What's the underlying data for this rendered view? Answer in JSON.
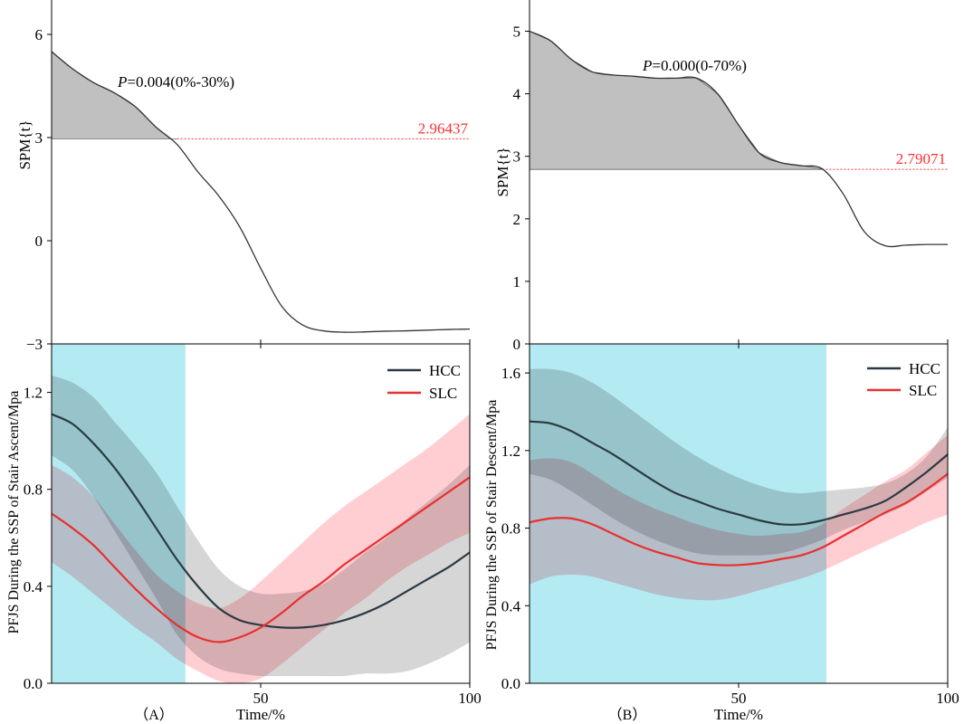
{
  "colors": {
    "spm_curve": "#333333",
    "spm_fill": "#c0c0c0",
    "threshold": "#ff3030",
    "hcc": "#2b3a42",
    "hcc_band": "#c8c8c8",
    "slc": "#e83030",
    "slc_band": "#ffb0b8",
    "highlight": "#b4eaf2",
    "axis": "#000000"
  },
  "shared": {
    "xlabel": "Time/%",
    "spm_ylabel": "SPM{t}",
    "legend_hcc": "HCC",
    "legend_slc": "SLC"
  },
  "chart_data": [
    {
      "id": "A-spm",
      "panel_label": "（A）",
      "type": "line",
      "x": [
        0,
        5,
        10,
        15,
        20,
        25,
        30,
        35,
        40,
        45,
        50,
        55,
        60,
        65,
        70,
        75,
        80,
        85,
        90,
        95,
        100
      ],
      "y": [
        5.5,
        5.0,
        4.6,
        4.3,
        3.9,
        3.3,
        2.8,
        2.0,
        1.3,
        0.4,
        -0.8,
        -1.9,
        -2.45,
        -2.62,
        -2.66,
        -2.65,
        -2.63,
        -2.62,
        -2.6,
        -2.58,
        -2.57
      ],
      "xlim": [
        0,
        100
      ],
      "ylim": [
        -3,
        7
      ],
      "xticks": [
        50,
        100
      ],
      "yticks": [
        -3,
        0,
        3,
        6
      ],
      "threshold": 2.96437,
      "threshold_label": "2.96437",
      "cluster": {
        "start": 0,
        "end": 30
      },
      "annotation_p": "P",
      "annotation_rest": "=0.004(0%-30%)",
      "ylabel": "SPM{t}"
    },
    {
      "id": "A-pfjs",
      "type": "line",
      "x": [
        0,
        5,
        10,
        15,
        20,
        25,
        30,
        35,
        40,
        45,
        50,
        55,
        60,
        65,
        70,
        75,
        80,
        85,
        90,
        95,
        100
      ],
      "xlim": [
        0,
        100
      ],
      "ylim": [
        0,
        1.4
      ],
      "xticks": [
        50,
        100
      ],
      "yticks": [
        0.0,
        0.4,
        0.8,
        1.2
      ],
      "ytick_labels": [
        "0.0",
        "0.4",
        "0.8",
        "1.2"
      ],
      "highlight": {
        "start": 0,
        "end": 32
      },
      "ylabel": "PFJS During the SSP of Stair Ascent/Mpa",
      "xlabel": "Time/%",
      "legend_position": "top-right",
      "series": [
        {
          "name": "HCC",
          "mean": [
            1.11,
            1.07,
            0.99,
            0.89,
            0.77,
            0.64,
            0.51,
            0.4,
            0.31,
            0.26,
            0.24,
            0.23,
            0.23,
            0.24,
            0.26,
            0.29,
            0.33,
            0.38,
            0.43,
            0.48,
            0.54
          ],
          "lower": [
            0.94,
            0.88,
            0.77,
            0.63,
            0.49,
            0.35,
            0.2,
            0.11,
            0.06,
            0.04,
            0.03,
            0.03,
            0.03,
            0.03,
            0.03,
            0.04,
            0.04,
            0.05,
            0.08,
            0.12,
            0.17
          ],
          "upper": [
            1.27,
            1.24,
            1.18,
            1.08,
            0.98,
            0.87,
            0.73,
            0.59,
            0.47,
            0.4,
            0.37,
            0.37,
            0.38,
            0.41,
            0.47,
            0.54,
            0.6,
            0.68,
            0.75,
            0.82,
            0.9
          ]
        },
        {
          "name": "SLC",
          "mean": [
            0.7,
            0.64,
            0.57,
            0.48,
            0.39,
            0.31,
            0.24,
            0.19,
            0.17,
            0.19,
            0.23,
            0.29,
            0.36,
            0.42,
            0.49,
            0.55,
            0.61,
            0.67,
            0.73,
            0.79,
            0.85
          ],
          "lower": [
            0.5,
            0.44,
            0.37,
            0.3,
            0.23,
            0.17,
            0.1,
            0.05,
            0.01,
            0.0,
            0.02,
            0.08,
            0.15,
            0.22,
            0.29,
            0.35,
            0.42,
            0.48,
            0.53,
            0.58,
            0.62
          ],
          "upper": [
            0.9,
            0.85,
            0.77,
            0.66,
            0.55,
            0.45,
            0.38,
            0.33,
            0.31,
            0.35,
            0.42,
            0.5,
            0.58,
            0.66,
            0.73,
            0.79,
            0.85,
            0.91,
            0.97,
            1.04,
            1.11
          ]
        }
      ]
    },
    {
      "id": "B-spm",
      "panel_label": "（B）",
      "type": "line",
      "x": [
        0,
        5,
        10,
        15,
        20,
        25,
        30,
        35,
        40,
        45,
        50,
        55,
        60,
        65,
        70,
        75,
        80,
        85,
        90,
        95,
        100
      ],
      "y": [
        5.0,
        4.85,
        4.55,
        4.35,
        4.3,
        4.28,
        4.25,
        4.25,
        4.25,
        4.0,
        3.5,
        3.05,
        2.9,
        2.85,
        2.8,
        2.4,
        1.8,
        1.57,
        1.58,
        1.59,
        1.59
      ],
      "xlim": [
        0,
        100
      ],
      "ylim": [
        0,
        5.5
      ],
      "xticks": [
        50,
        100
      ],
      "yticks": [
        0,
        1,
        2,
        3,
        4,
        5
      ],
      "threshold": 2.79071,
      "threshold_label": "2.79071",
      "cluster": {
        "start": 0,
        "end": 70
      },
      "annotation_p": "P",
      "annotation_rest": "=0.000(0-70%)",
      "ylabel": "SPM{t}"
    },
    {
      "id": "B-pfjs",
      "type": "line",
      "x": [
        0,
        5,
        10,
        15,
        20,
        25,
        30,
        35,
        40,
        45,
        50,
        55,
        60,
        65,
        70,
        75,
        80,
        85,
        90,
        95,
        100
      ],
      "xlim": [
        0,
        100
      ],
      "ylim": [
        0,
        1.75
      ],
      "xticks": [
        50,
        100
      ],
      "yticks": [
        0.0,
        0.4,
        0.8,
        1.2,
        1.6
      ],
      "ytick_labels": [
        "0.0",
        "0.4",
        "0.8",
        "1.2",
        "1.6"
      ],
      "highlight": {
        "start": 0,
        "end": 71
      },
      "ylabel": "PFJS During the SSP of Stair Descent/Mpa",
      "xlabel": "Time/%",
      "legend_position": "top-right",
      "series": [
        {
          "name": "HCC",
          "mean": [
            1.35,
            1.34,
            1.3,
            1.24,
            1.18,
            1.11,
            1.04,
            0.98,
            0.94,
            0.9,
            0.87,
            0.84,
            0.82,
            0.82,
            0.84,
            0.87,
            0.9,
            0.94,
            1.01,
            1.09,
            1.18
          ],
          "lower": [
            1.08,
            1.05,
            0.99,
            0.92,
            0.85,
            0.79,
            0.74,
            0.7,
            0.67,
            0.66,
            0.66,
            0.66,
            0.67,
            0.7,
            0.74,
            0.79,
            0.83,
            0.87,
            0.92,
            0.99,
            1.06
          ],
          "upper": [
            1.62,
            1.62,
            1.6,
            1.55,
            1.48,
            1.4,
            1.32,
            1.24,
            1.17,
            1.11,
            1.06,
            1.02,
            0.99,
            0.98,
            0.99,
            1.0,
            1.01,
            1.03,
            1.08,
            1.17,
            1.32
          ]
        },
        {
          "name": "SLC",
          "mean": [
            0.83,
            0.85,
            0.85,
            0.82,
            0.77,
            0.72,
            0.68,
            0.65,
            0.62,
            0.61,
            0.61,
            0.62,
            0.64,
            0.66,
            0.7,
            0.76,
            0.82,
            0.88,
            0.93,
            1.0,
            1.08
          ],
          "lower": [
            0.51,
            0.55,
            0.56,
            0.55,
            0.52,
            0.49,
            0.46,
            0.44,
            0.43,
            0.43,
            0.45,
            0.48,
            0.51,
            0.54,
            0.58,
            0.63,
            0.68,
            0.73,
            0.78,
            0.83,
            0.87
          ],
          "upper": [
            1.15,
            1.16,
            1.14,
            1.08,
            1.01,
            0.95,
            0.9,
            0.86,
            0.82,
            0.79,
            0.77,
            0.76,
            0.77,
            0.78,
            0.82,
            0.9,
            0.97,
            1.04,
            1.1,
            1.19,
            1.28
          ]
        }
      ]
    }
  ]
}
